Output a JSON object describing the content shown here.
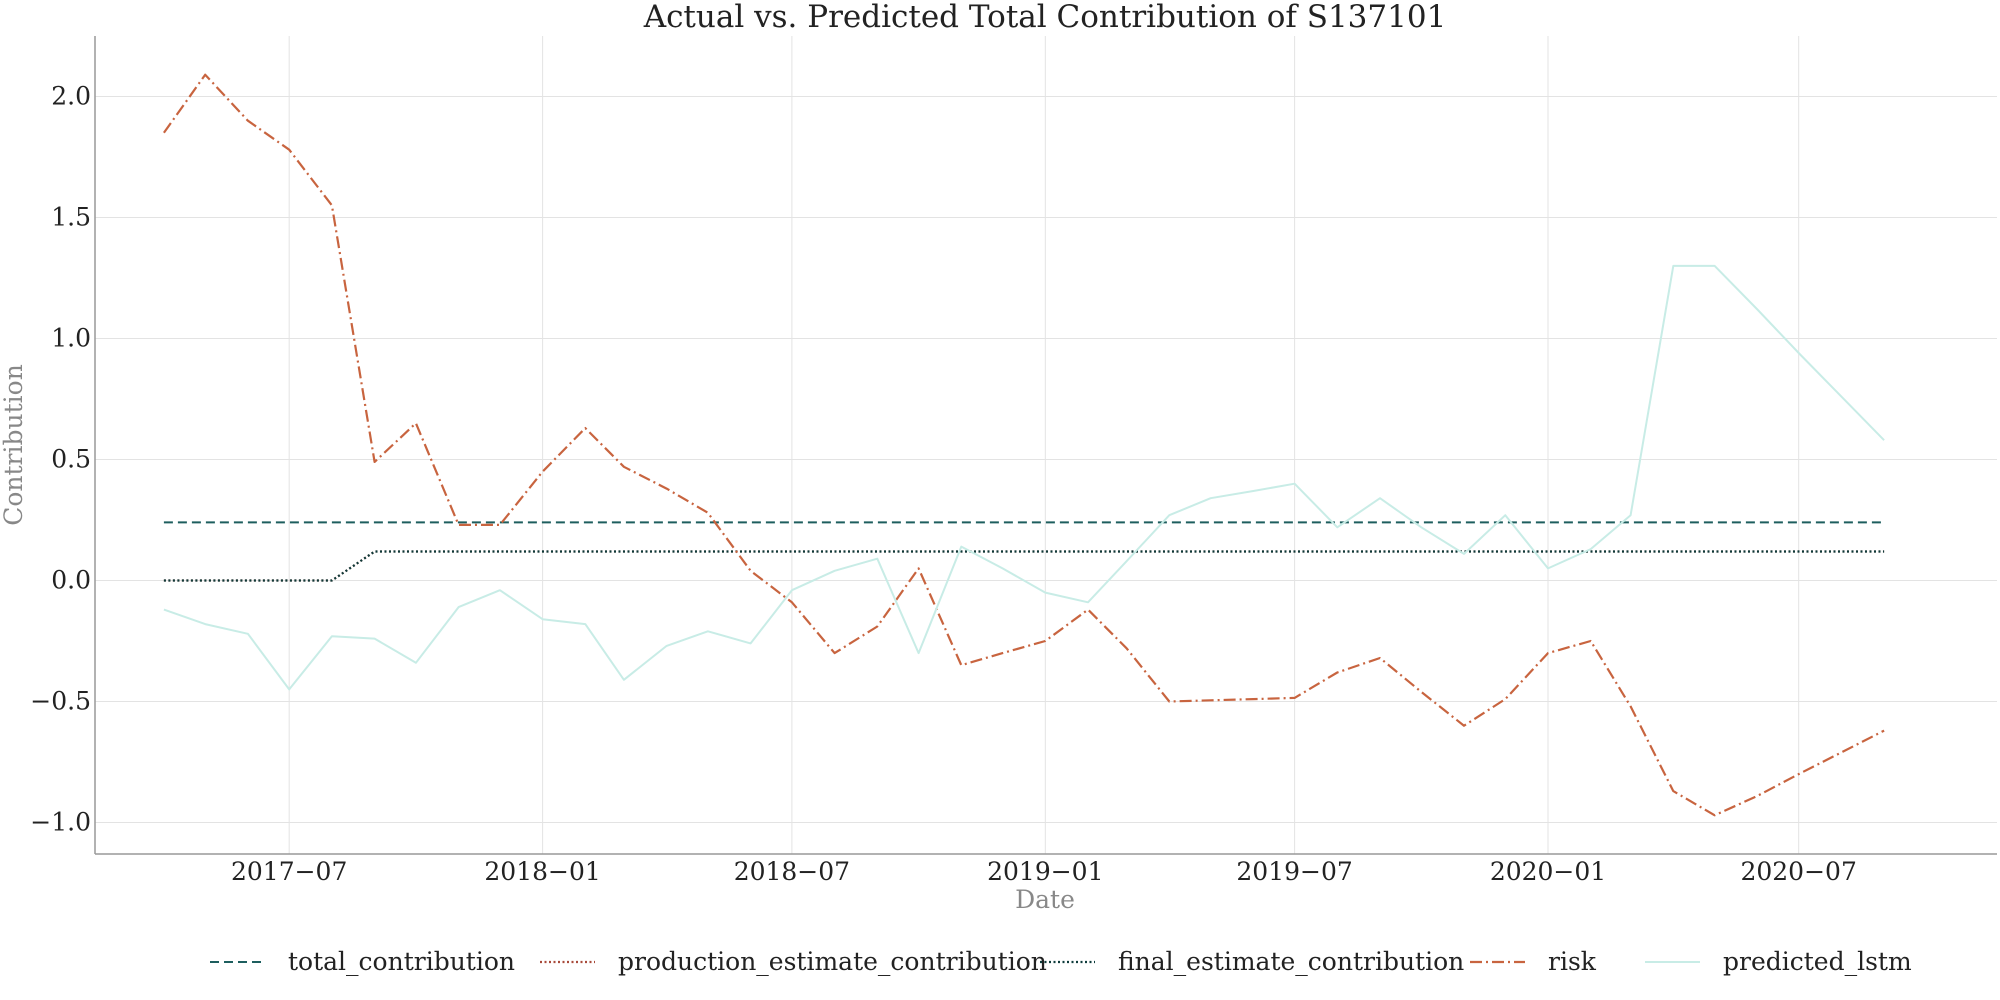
{
  "chart_data": {
    "type": "line",
    "title": "Actual vs. Predicted Total Contribution of S137101",
    "xlabel": "Date",
    "ylabel": "Contribution",
    "x_ticks": [
      "2017−07",
      "2018−01",
      "2018−07",
      "2019−01",
      "2019−07",
      "2020−01",
      "2020−07"
    ],
    "y_ticks": [
      "−1.0",
      "−0.5",
      "0.0",
      "0.5",
      "1.0",
      "1.5",
      "2.0"
    ],
    "y_tick_values": [
      -1.0,
      -0.5,
      0.0,
      0.5,
      1.0,
      1.5,
      2.0
    ],
    "ylim": [
      -1.13,
      2.25
    ],
    "xlim": [
      "2017-02-10",
      "2020-11-22"
    ],
    "grid": true,
    "legend_position": "bottom",
    "x": [
      "2017-04-01",
      "2017-05-01",
      "2017-06-01",
      "2017-07-01",
      "2017-08-01",
      "2017-09-01",
      "2017-10-01",
      "2017-11-01",
      "2017-12-01",
      "2018-01-01",
      "2018-02-01",
      "2018-03-01",
      "2018-04-01",
      "2018-05-01",
      "2018-06-01",
      "2018-07-01",
      "2018-08-01",
      "2018-09-01",
      "2018-10-01",
      "2018-11-01",
      "2018-12-01",
      "2019-01-01",
      "2019-02-01",
      "2019-03-01",
      "2019-04-01",
      "2019-05-01",
      "2019-06-01",
      "2019-07-01",
      "2019-08-01",
      "2019-09-01",
      "2019-10-01",
      "2019-11-01",
      "2019-12-01",
      "2020-01-01",
      "2020-02-01",
      "2020-03-01",
      "2020-04-01",
      "2020-05-01",
      "2020-06-01",
      "2020-07-01",
      "2020-08-01",
      "2020-09-01"
    ],
    "series": [
      {
        "name": "total_contribution",
        "color": "#1d5e5e",
        "dash": "dashed",
        "values": [
          0.24,
          0.24,
          0.24,
          0.24,
          0.24,
          0.24,
          0.24,
          0.24,
          0.24,
          0.24,
          0.24,
          0.24,
          0.24,
          0.24,
          0.24,
          0.24,
          0.24,
          0.24,
          0.24,
          0.24,
          0.24,
          0.24,
          0.24,
          0.24,
          0.24,
          0.24,
          0.24,
          0.24,
          0.24,
          0.24,
          0.24,
          0.24,
          0.24,
          0.24,
          0.24,
          0.24,
          0.24,
          0.24,
          0.24,
          0.24,
          0.24,
          0.24
        ]
      },
      {
        "name": "production_estimate_contribution",
        "color": "#a84a3a",
        "dash": "dotted",
        "values": [
          0.0,
          0.0,
          0.0,
          0.0,
          0.0,
          0.12,
          0.12,
          0.12,
          0.12,
          0.12,
          0.12,
          0.12,
          0.12,
          0.12,
          0.12,
          0.12,
          0.12,
          0.12,
          0.12,
          0.12,
          0.12,
          0.12,
          0.12,
          0.12,
          0.12,
          0.12,
          0.12,
          0.12,
          0.12,
          0.12,
          0.12,
          0.12,
          0.12,
          0.12,
          0.12,
          0.12,
          0.12,
          0.12,
          0.12,
          0.12,
          0.12,
          0.12
        ]
      },
      {
        "name": "final_estimate_contribution",
        "color": "#0d3b3b",
        "dash": "dotted",
        "values": [
          0.0,
          0.0,
          0.0,
          0.0,
          0.0,
          0.12,
          0.12,
          0.12,
          0.12,
          0.12,
          0.12,
          0.12,
          0.12,
          0.12,
          0.12,
          0.12,
          0.12,
          0.12,
          0.12,
          0.12,
          0.12,
          0.12,
          0.12,
          0.12,
          0.12,
          0.12,
          0.12,
          0.12,
          0.12,
          0.12,
          0.12,
          0.12,
          0.12,
          0.12,
          0.12,
          0.12,
          0.12,
          0.12,
          0.12,
          0.12,
          0.12,
          0.12
        ]
      },
      {
        "name": "risk",
        "color": "#c8643f",
        "dash": "dashdot",
        "values": [
          1.85,
          2.09,
          1.9,
          1.78,
          1.55,
          0.49,
          0.65,
          0.23,
          0.23,
          0.45,
          0.63,
          0.47,
          0.38,
          0.28,
          0.04,
          -0.09,
          -0.3,
          -0.19,
          0.05,
          -0.35,
          -0.3,
          -0.25,
          -0.12,
          -0.28,
          -0.5,
          -0.495,
          -0.49,
          -0.485,
          -0.38,
          -0.32,
          -0.46,
          -0.6,
          -0.49,
          -0.3,
          -0.25,
          -0.52,
          -0.87,
          -0.97,
          -0.89,
          -0.8,
          -0.71,
          -0.62
        ]
      },
      {
        "name": "predicted_lstm",
        "color": "#c8ece6",
        "dash": "solid",
        "values": [
          -0.12,
          -0.18,
          -0.22,
          -0.45,
          -0.23,
          -0.24,
          -0.34,
          -0.11,
          -0.04,
          -0.16,
          -0.18,
          -0.41,
          -0.27,
          -0.21,
          -0.26,
          -0.04,
          0.04,
          0.09,
          -0.3,
          0.14,
          0.05,
          -0.05,
          -0.09,
          0.08,
          0.27,
          0.34,
          0.37,
          0.4,
          0.22,
          0.34,
          0.22,
          0.11,
          0.27,
          0.05,
          0.13,
          0.27,
          1.3,
          1.3,
          1.12,
          0.94,
          0.76,
          0.58
        ]
      }
    ]
  }
}
